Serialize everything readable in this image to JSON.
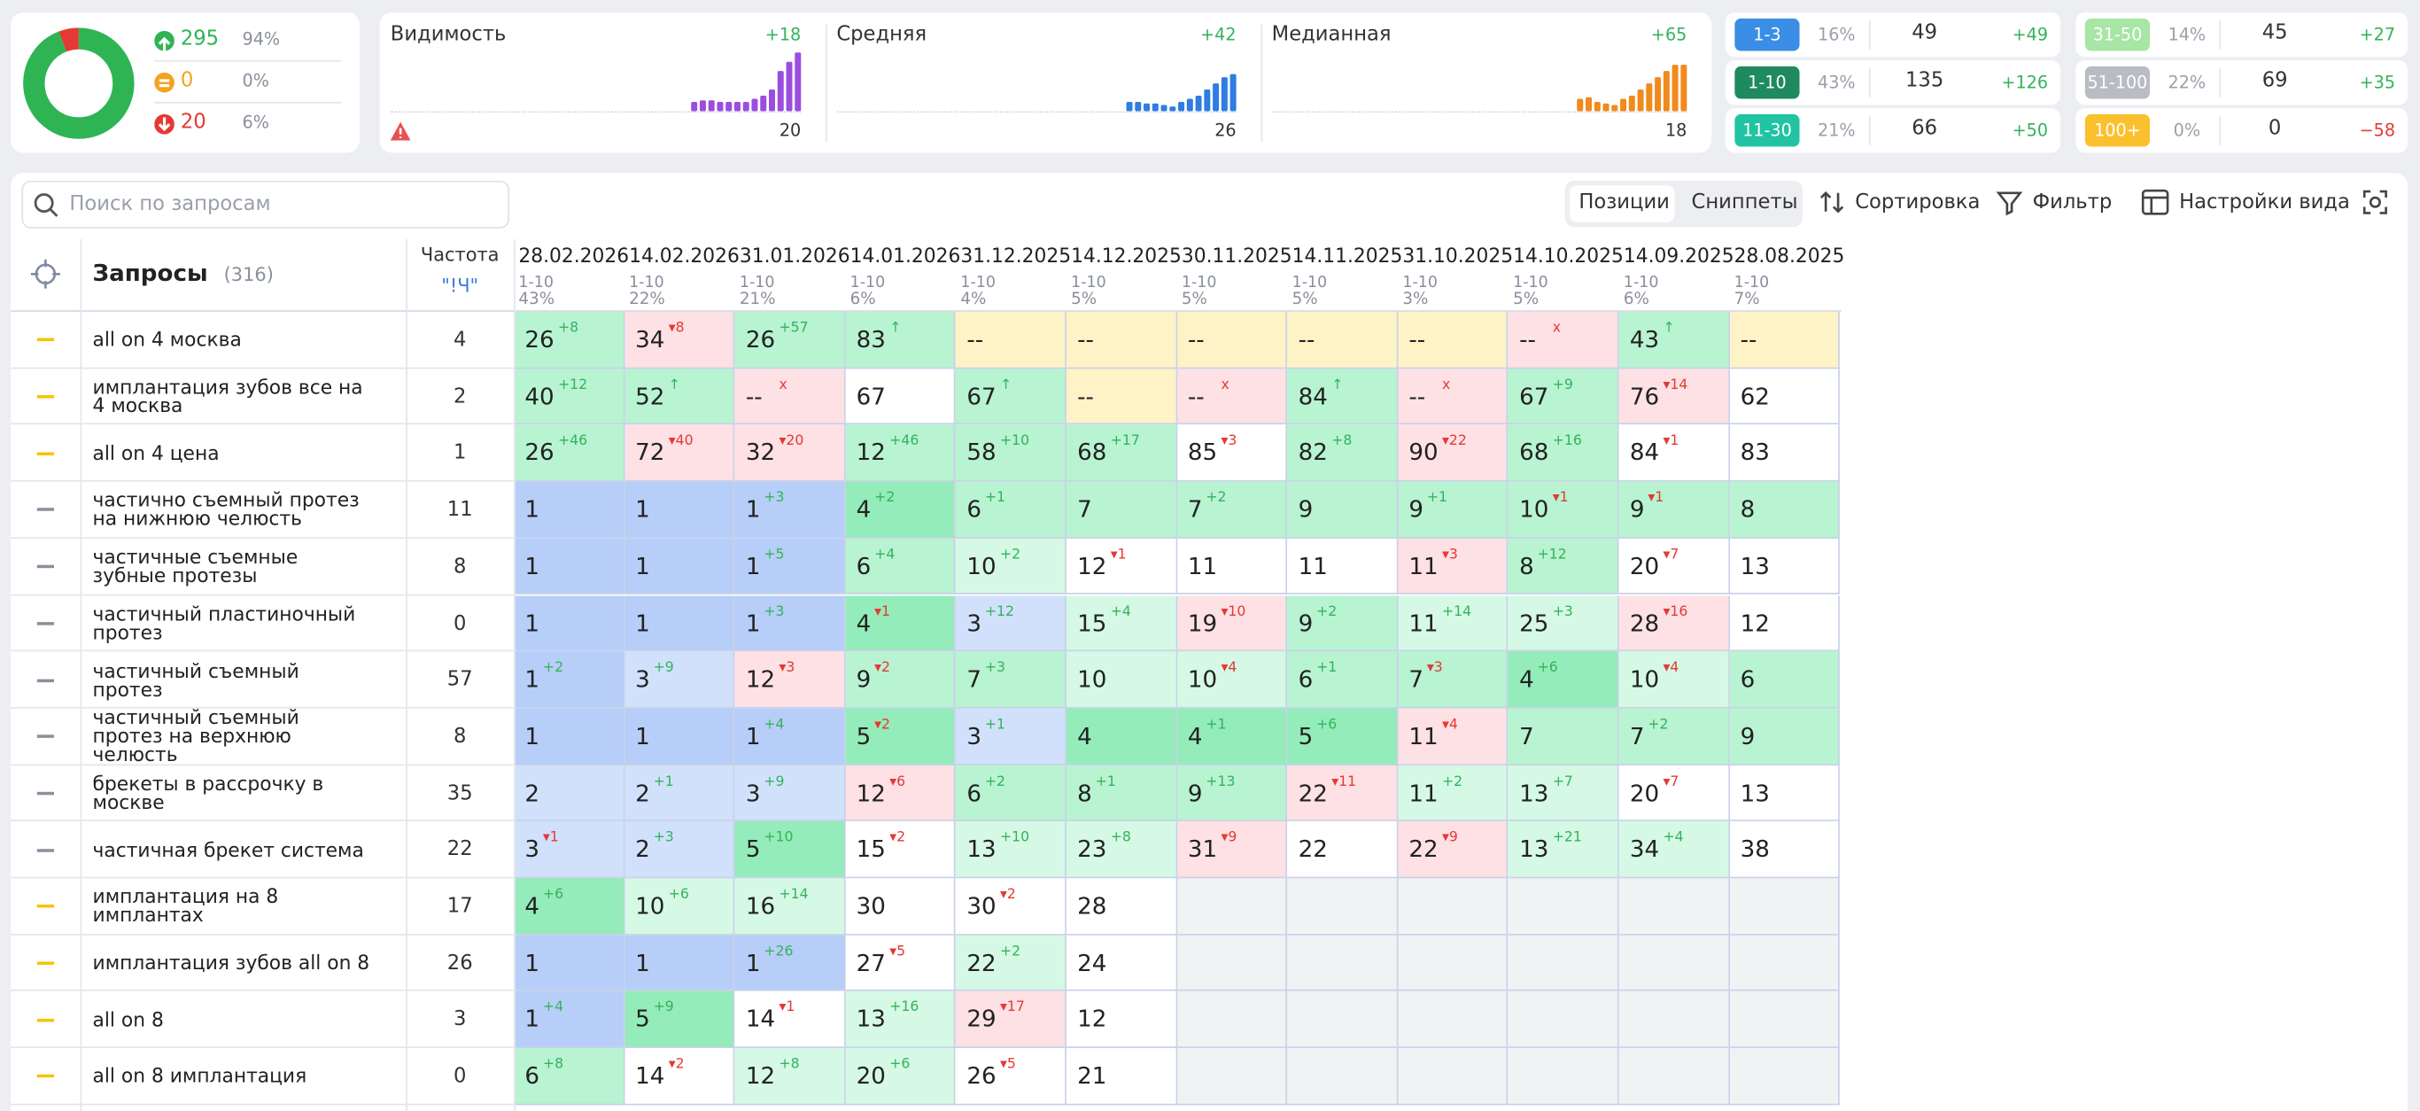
{
  "summary": {
    "counts": [
      295,
      0,
      20
    ],
    "shares": [
      94,
      0,
      6
    ],
    "share_labels": [
      "94%",
      "0%",
      "6%"
    ],
    "colors": [
      "#2fb454",
      "#f3a320",
      "#e53935"
    ]
  },
  "metrics": [
    {
      "title": "Видимость",
      "change": "+18",
      "value": 20,
      "color": "#9b4de0",
      "bars": [
        6,
        7,
        7,
        6,
        6,
        6,
        6,
        8,
        10,
        14,
        26,
        32,
        38
      ]
    },
    {
      "title": "Средняя",
      "change": "+42",
      "value": 26,
      "color": "#2f7de1",
      "bars": [
        6,
        6,
        5,
        5,
        4,
        3,
        6,
        8,
        10,
        14,
        18,
        22,
        24
      ]
    },
    {
      "title": "Медианная",
      "change": "+65",
      "value": 18,
      "color": "#f08a1c",
      "bars": [
        8,
        9,
        6,
        5,
        4,
        8,
        10,
        14,
        18,
        22,
        26,
        30,
        30
      ]
    }
  ],
  "ranges": [
    {
      "label": "1-3",
      "share": "16%",
      "count": 49,
      "change": "+49",
      "color": "#3a8ee6"
    },
    {
      "label": "1-10",
      "share": "43%",
      "count": 135,
      "change": "+126",
      "color": "#1e8a5e"
    },
    {
      "label": "11-30",
      "share": "21%",
      "count": 66,
      "change": "+50",
      "color": "#21c3a3"
    },
    {
      "label": "31-50",
      "share": "14%",
      "count": 45,
      "change": "+27",
      "color": "#a7e6a5"
    },
    {
      "label": "51-100",
      "share": "22%",
      "count": 69,
      "change": "+35",
      "color": "#b9bcc2"
    },
    {
      "label": "100+",
      "share": "0%",
      "count": 0,
      "change": "−58",
      "color": "#fbc02d"
    }
  ],
  "toolbar": {
    "search": "Поиск по запросам",
    "tabs": [
      "Позиции",
      "Сниппеты"
    ],
    "sort": "Сортировка",
    "filter": "Фильтр",
    "view": "Настройки вида"
  },
  "table": {
    "title": "Запросы",
    "count": "(316)",
    "freq_title": "Частота",
    "freq_mode": "\"!Ч\"",
    "dates": [
      {
        "date": "28.02.2026",
        "range": "1-10",
        "share": "43%"
      },
      {
        "date": "14.02.2026",
        "range": "1-10",
        "share": "22%"
      },
      {
        "date": "31.01.2026",
        "range": "1-10",
        "share": "21%"
      },
      {
        "date": "14.01.2026",
        "range": "1-10",
        "share": "6%"
      },
      {
        "date": "31.12.2025",
        "range": "1-10",
        "share": "4%"
      },
      {
        "date": "14.12.2025",
        "range": "1-10",
        "share": "5%"
      },
      {
        "date": "30.11.2025",
        "range": "1-10",
        "share": "5%"
      },
      {
        "date": "14.11.2025",
        "range": "1-10",
        "share": "5%"
      },
      {
        "date": "31.10.2025",
        "range": "1-10",
        "share": "3%"
      },
      {
        "date": "14.10.2025",
        "range": "1-10",
        "share": "5%"
      },
      {
        "date": "14.09.2025",
        "range": "1-10",
        "share": "6%"
      },
      {
        "date": "28.08.2025",
        "range": "1-10",
        "share": "7%"
      }
    ],
    "rows": [
      {
        "query": "all on 4 москва",
        "freq": 4,
        "flag": "#f5c400",
        "cells": [
          [
            26,
            "+8",
            "lg"
          ],
          [
            34,
            "▾8",
            "p"
          ],
          [
            26,
            "+57",
            "lg"
          ],
          [
            83,
            "↑",
            "lg"
          ],
          [
            "--",
            null,
            "y"
          ],
          [
            "--",
            null,
            "y"
          ],
          [
            "--",
            null,
            "y"
          ],
          [
            "--",
            null,
            "y"
          ],
          [
            "--",
            null,
            "y"
          ],
          [
            "--",
            "x",
            "p"
          ],
          [
            43,
            "↑",
            "lg"
          ],
          [
            "--",
            null,
            "y"
          ]
        ]
      },
      {
        "query": "имплантация зубов все на 4 москва",
        "freq": 2,
        "flag": "#f5c400",
        "cells": [
          [
            40,
            "+12",
            "lg"
          ],
          [
            52,
            "↑",
            "lg"
          ],
          [
            "--",
            "x",
            "p"
          ],
          [
            67,
            null,
            "w"
          ],
          [
            67,
            "↑",
            "lg"
          ],
          [
            "--",
            null,
            "y"
          ],
          [
            "--",
            "x",
            "p"
          ],
          [
            84,
            "↑",
            "lg"
          ],
          [
            "--",
            "x",
            "p"
          ],
          [
            67,
            "+9",
            "lg"
          ],
          [
            76,
            "▾14",
            "p"
          ],
          [
            62,
            null,
            "w"
          ]
        ]
      },
      {
        "query": "all on 4 цена",
        "freq": 1,
        "flag": "#f5c400",
        "cells": [
          [
            26,
            "+46",
            "lg"
          ],
          [
            72,
            "▾40",
            "p"
          ],
          [
            32,
            "▾20",
            "p"
          ],
          [
            12,
            "+46",
            "lg"
          ],
          [
            58,
            "+10",
            "lg"
          ],
          [
            68,
            "+17",
            "lg"
          ],
          [
            85,
            "▾3",
            "w"
          ],
          [
            82,
            "+8",
            "lg"
          ],
          [
            90,
            "▾22",
            "p"
          ],
          [
            68,
            "+16",
            "lg"
          ],
          [
            84,
            "▾1",
            "w"
          ],
          [
            83,
            null,
            "w"
          ]
        ]
      },
      {
        "query": "частично съемный протез на нижнюю челюсть",
        "freq": 11,
        "flag": "#8a8f9c",
        "cells": [
          [
            1,
            null,
            "b"
          ],
          [
            1,
            null,
            "b"
          ],
          [
            1,
            "+3",
            "b"
          ],
          [
            4,
            "+2",
            "g"
          ],
          [
            6,
            "+1",
            "lg"
          ],
          [
            7,
            null,
            "lg"
          ],
          [
            7,
            "+2",
            "lg"
          ],
          [
            9,
            null,
            "lg"
          ],
          [
            9,
            "+1",
            "lg"
          ],
          [
            10,
            "▾1",
            "lg"
          ],
          [
            9,
            "▾1",
            "lg"
          ],
          [
            8,
            null,
            "lg"
          ]
        ]
      },
      {
        "query": "частичные съемные зубные протезы",
        "freq": 8,
        "flag": "#8a8f9c",
        "cells": [
          [
            1,
            null,
            "b"
          ],
          [
            1,
            null,
            "b"
          ],
          [
            1,
            "+5",
            "b"
          ],
          [
            6,
            "+4",
            "lg"
          ],
          [
            10,
            "+2",
            "vlg"
          ],
          [
            12,
            "▾1",
            "w"
          ],
          [
            11,
            null,
            "w"
          ],
          [
            11,
            null,
            "w"
          ],
          [
            11,
            "▾3",
            "p"
          ],
          [
            8,
            "+12",
            "lg"
          ],
          [
            20,
            "▾7",
            "w"
          ],
          [
            13,
            null,
            "w"
          ]
        ]
      },
      {
        "query": "частичный пластиночный протез",
        "freq": 0,
        "flag": "#8a8f9c",
        "cells": [
          [
            1,
            null,
            "b"
          ],
          [
            1,
            null,
            "b"
          ],
          [
            1,
            "+3",
            "b"
          ],
          [
            4,
            "▾1",
            "g"
          ],
          [
            3,
            "+12",
            "lb"
          ],
          [
            15,
            "+4",
            "vlg"
          ],
          [
            19,
            "▾10",
            "p"
          ],
          [
            9,
            "+2",
            "lg"
          ],
          [
            11,
            "+14",
            "vlg"
          ],
          [
            25,
            "+3",
            "vlg"
          ],
          [
            28,
            "▾16",
            "p"
          ],
          [
            12,
            null,
            "w"
          ]
        ]
      },
      {
        "query": "частичный съемный протез",
        "freq": 57,
        "flag": "#8a8f9c",
        "cells": [
          [
            1,
            "+2",
            "b"
          ],
          [
            3,
            "+9",
            "lb"
          ],
          [
            12,
            "▾3",
            "p"
          ],
          [
            9,
            "▾2",
            "lg"
          ],
          [
            7,
            "+3",
            "lg"
          ],
          [
            10,
            null,
            "vlg"
          ],
          [
            10,
            "▾4",
            "vlg"
          ],
          [
            6,
            "+1",
            "lg"
          ],
          [
            7,
            "▾3",
            "lg"
          ],
          [
            4,
            "+6",
            "g"
          ],
          [
            10,
            "▾4",
            "vlg"
          ],
          [
            6,
            null,
            "lg"
          ]
        ]
      },
      {
        "query": "частичный съемный протез на верхнюю челюсть",
        "freq": 8,
        "flag": "#8a8f9c",
        "cells": [
          [
            1,
            null,
            "b"
          ],
          [
            1,
            null,
            "b"
          ],
          [
            1,
            "+4",
            "b"
          ],
          [
            5,
            "▾2",
            "g"
          ],
          [
            3,
            "+1",
            "lb"
          ],
          [
            4,
            null,
            "g"
          ],
          [
            4,
            "+1",
            "g"
          ],
          [
            5,
            "+6",
            "g"
          ],
          [
            11,
            "▾4",
            "p"
          ],
          [
            7,
            null,
            "lg"
          ],
          [
            7,
            "+2",
            "lg"
          ],
          [
            9,
            null,
            "lg"
          ]
        ]
      },
      {
        "query": "брекеты в рассрочку в москве",
        "freq": 35,
        "flag": "#8a8f9c",
        "cells": [
          [
            2,
            null,
            "lb"
          ],
          [
            2,
            "+1",
            "lb"
          ],
          [
            3,
            "+9",
            "lb"
          ],
          [
            12,
            "▾6",
            "p"
          ],
          [
            6,
            "+2",
            "lg"
          ],
          [
            8,
            "+1",
            "lg"
          ],
          [
            9,
            "+13",
            "lg"
          ],
          [
            22,
            "▾11",
            "p"
          ],
          [
            11,
            "+2",
            "vlg"
          ],
          [
            13,
            "+7",
            "vlg"
          ],
          [
            20,
            "▾7",
            "w"
          ],
          [
            13,
            null,
            "w"
          ]
        ]
      },
      {
        "query": "частичная брекет система",
        "freq": 22,
        "flag": "#8a8f9c",
        "cells": [
          [
            3,
            "▾1",
            "lb"
          ],
          [
            2,
            "+3",
            "lb"
          ],
          [
            5,
            "+10",
            "g"
          ],
          [
            15,
            "▾2",
            "w"
          ],
          [
            13,
            "+10",
            "vlg"
          ],
          [
            23,
            "+8",
            "vlg"
          ],
          [
            31,
            "▾9",
            "p"
          ],
          [
            22,
            null,
            "w"
          ],
          [
            22,
            "▾9",
            "p"
          ],
          [
            13,
            "+21",
            "vlg"
          ],
          [
            34,
            "+4",
            "vlg"
          ],
          [
            38,
            null,
            "w"
          ]
        ]
      },
      {
        "query": "имплантация на 8 имплантах",
        "freq": 17,
        "flag": "#f5c400",
        "cells": [
          [
            4,
            "+6",
            "g"
          ],
          [
            10,
            "+6",
            "vlg"
          ],
          [
            16,
            "+14",
            "vlg"
          ],
          [
            30,
            null,
            "w"
          ],
          [
            30,
            "▾2",
            "w"
          ],
          [
            28,
            null,
            "w"
          ],
          null,
          null,
          null,
          null,
          null,
          null
        ]
      },
      {
        "query": "имплантация зубов all on 8",
        "freq": 26,
        "flag": "#f5c400",
        "cells": [
          [
            1,
            null,
            "b"
          ],
          [
            1,
            null,
            "b"
          ],
          [
            1,
            "+26",
            "b"
          ],
          [
            27,
            "▾5",
            "w"
          ],
          [
            22,
            "+2",
            "vlg"
          ],
          [
            24,
            null,
            "w"
          ],
          null,
          null,
          null,
          null,
          null,
          null
        ]
      },
      {
        "query": "all on 8",
        "freq": 3,
        "flag": "#f5c400",
        "cells": [
          [
            1,
            "+4",
            "b"
          ],
          [
            5,
            "+9",
            "g"
          ],
          [
            14,
            "▾1",
            "w"
          ],
          [
            13,
            "+16",
            "vlg"
          ],
          [
            29,
            "▾17",
            "p"
          ],
          [
            12,
            null,
            "w"
          ],
          null,
          null,
          null,
          null,
          null,
          null
        ]
      },
      {
        "query": "all on 8 имплантация",
        "freq": 0,
        "flag": "#f5c400",
        "cells": [
          [
            6,
            "+8",
            "lg"
          ],
          [
            14,
            "▾2",
            "w"
          ],
          [
            12,
            "+8",
            "vlg"
          ],
          [
            20,
            "+6",
            "vlg"
          ],
          [
            26,
            "▾5",
            "w"
          ],
          [
            21,
            null,
            "w"
          ],
          null,
          null,
          null,
          null,
          null,
          null
        ]
      }
    ]
  }
}
